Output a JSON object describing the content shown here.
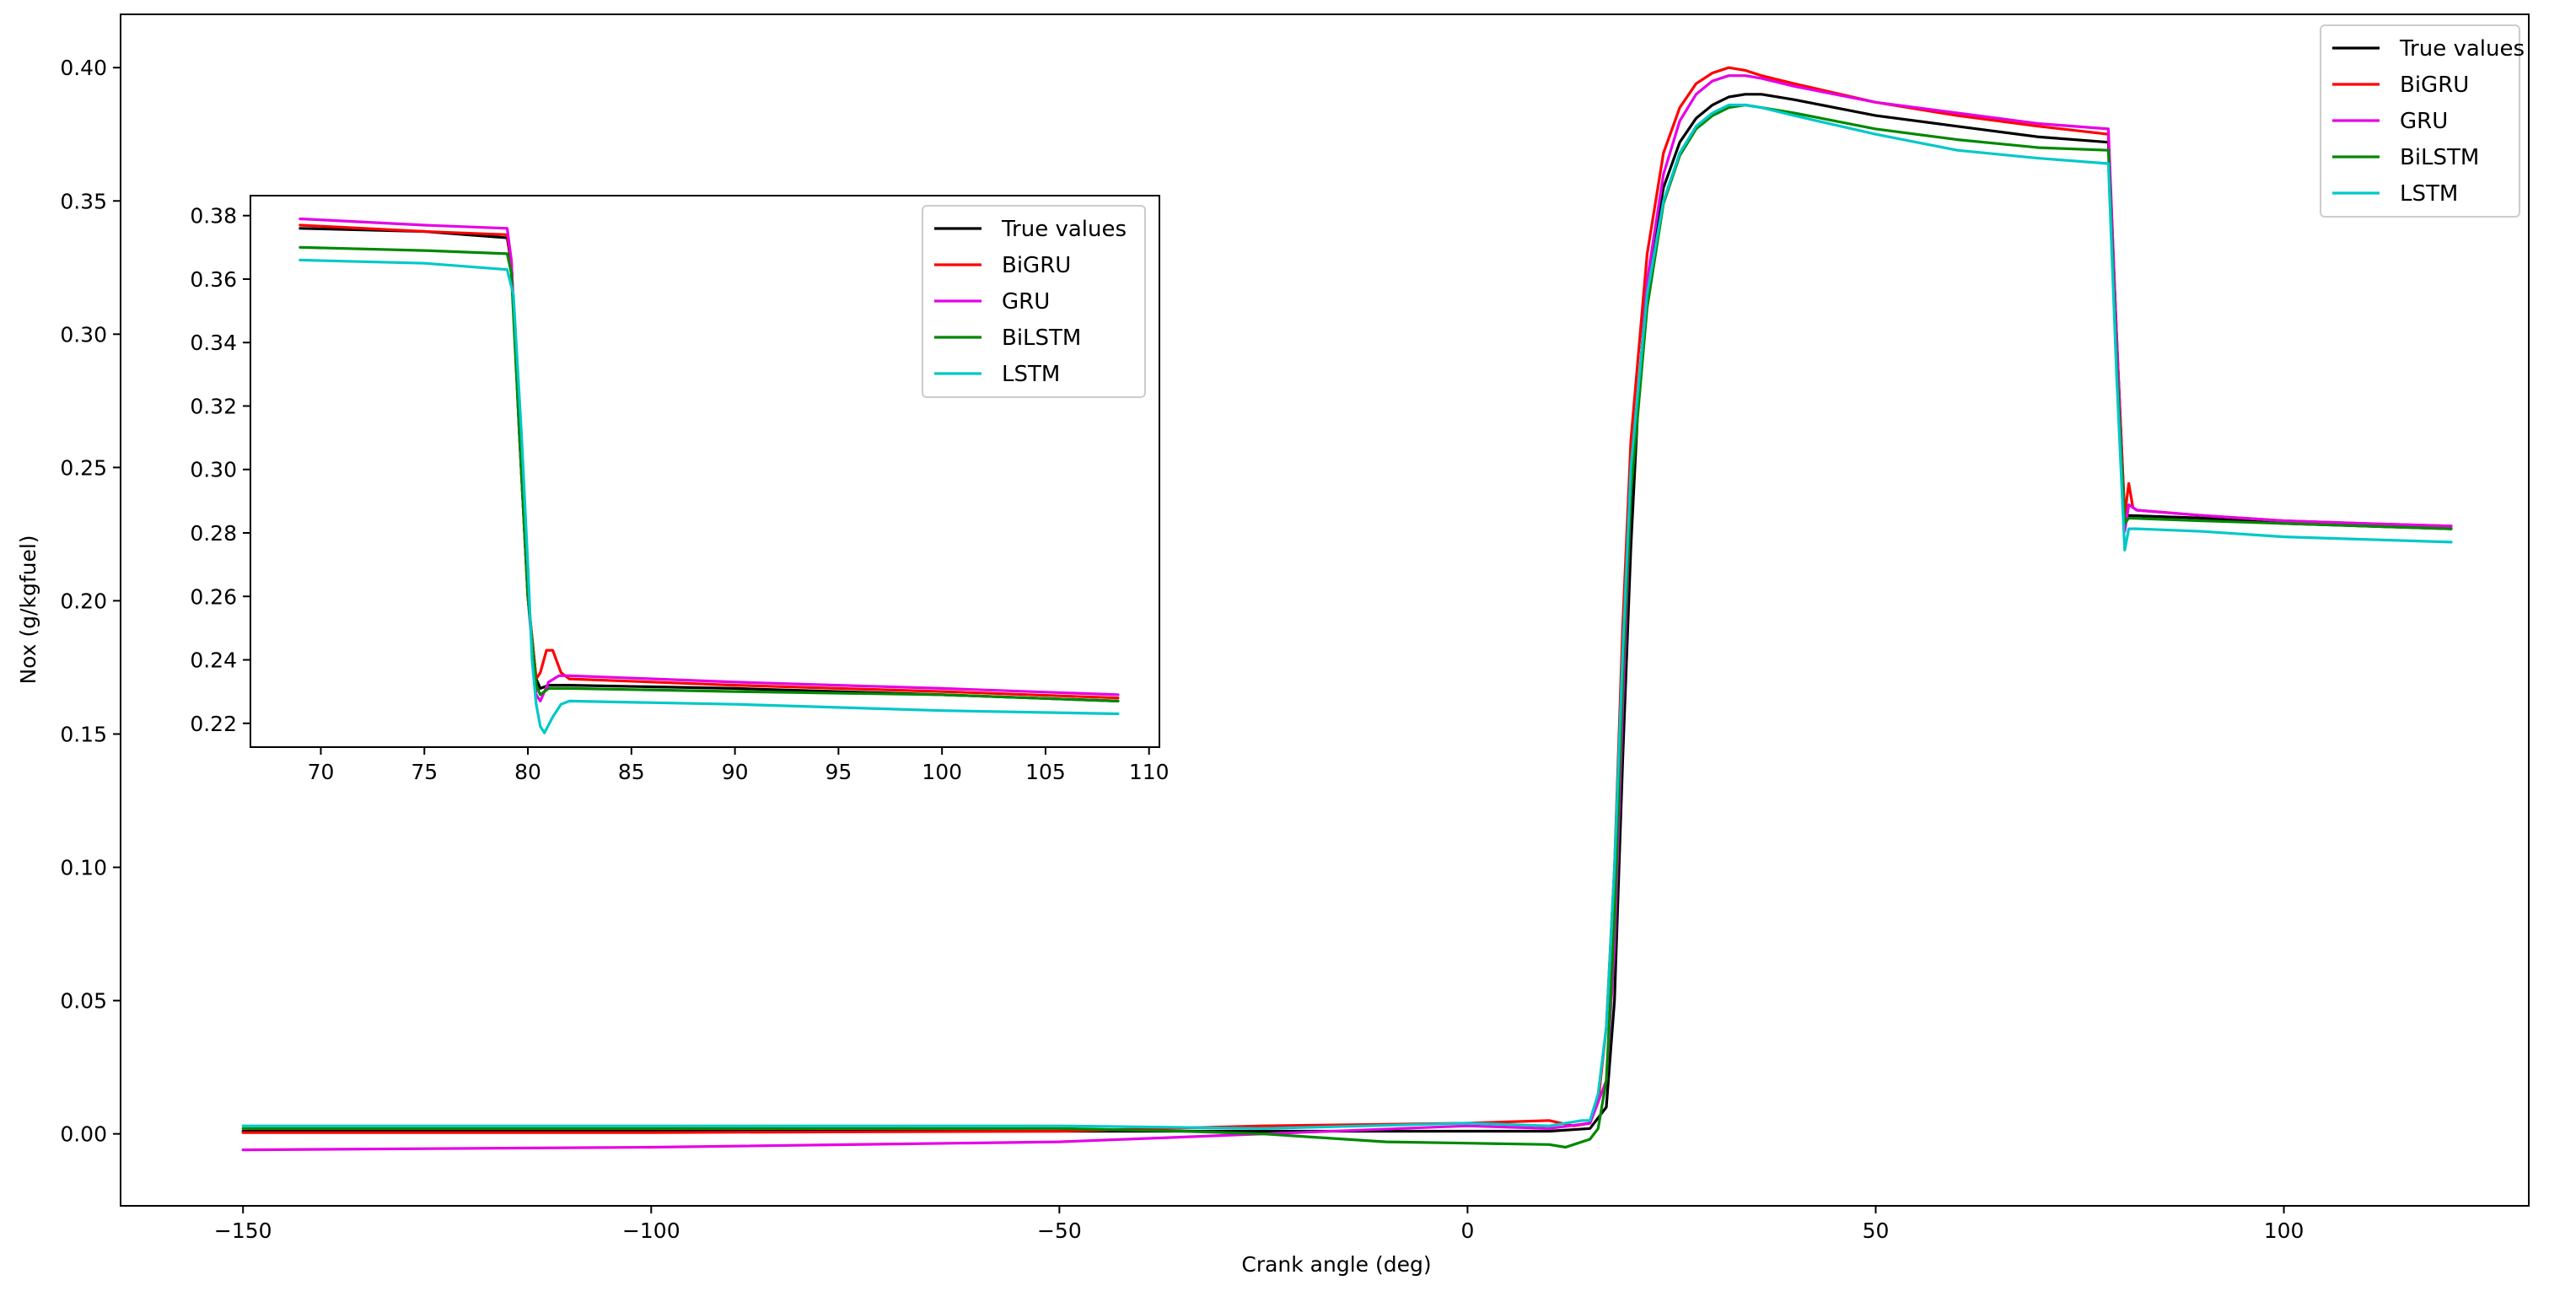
{
  "chart_data": [
    {
      "type": "line",
      "title": "",
      "xlabel": "Crank angle (deg)",
      "ylabel": "Nox (g/kgfuel)",
      "xlim": [
        -165,
        130
      ],
      "ylim": [
        -0.027,
        0.42
      ],
      "xticks": [
        -150,
        -100,
        -50,
        0,
        50,
        100
      ],
      "xtick_labels": [
        "−150",
        "−100",
        "−50",
        "0",
        "50",
        "100"
      ],
      "yticks": [
        0.0,
        0.05,
        0.1,
        0.15,
        0.2,
        0.25,
        0.3,
        0.35,
        0.4
      ],
      "ytick_labels": [
        "0.00",
        "0.05",
        "0.10",
        "0.15",
        "0.20",
        "0.25",
        "0.30",
        "0.35",
        "0.40"
      ],
      "grid": false,
      "legend_position": "top-right",
      "series": [
        {
          "name": "True values",
          "color": "#000000",
          "x": [
            -150,
            -100,
            -50,
            -25,
            0,
            10,
            15,
            17,
            18,
            19,
            20,
            21,
            22,
            24,
            26,
            28,
            30,
            32,
            34,
            36,
            40,
            50,
            60,
            70,
            78.5,
            79.5,
            80.5,
            81,
            90,
            100,
            110,
            120.5
          ],
          "y": [
            0.001,
            0.001,
            0.001,
            0.001,
            0.001,
            0.001,
            0.002,
            0.01,
            0.05,
            0.14,
            0.22,
            0.28,
            0.32,
            0.355,
            0.372,
            0.381,
            0.386,
            0.389,
            0.39,
            0.39,
            0.388,
            0.382,
            0.378,
            0.374,
            0.372,
            0.3,
            0.231,
            0.232,
            0.231,
            0.229,
            0.228,
            0.227
          ]
        },
        {
          "name": "BiGRU",
          "color": "#ff0000",
          "x": [
            -150,
            -100,
            -50,
            -25,
            0,
            10,
            13,
            15,
            16,
            17,
            18,
            19,
            20,
            22,
            24,
            26,
            28,
            30,
            32,
            34,
            36,
            40,
            50,
            60,
            70,
            78.5,
            79.5,
            80.5,
            81,
            81.5,
            82,
            90,
            100,
            110,
            120.5
          ],
          "y": [
            0.0005,
            0.0005,
            0.001,
            0.003,
            0.004,
            0.005,
            0.003,
            0.004,
            0.012,
            0.04,
            0.1,
            0.19,
            0.26,
            0.33,
            0.368,
            0.385,
            0.394,
            0.398,
            0.4,
            0.399,
            0.397,
            0.394,
            0.387,
            0.382,
            0.378,
            0.375,
            0.3,
            0.232,
            0.244,
            0.235,
            0.234,
            0.232,
            0.23,
            0.229,
            0.228
          ]
        },
        {
          "name": "GRU",
          "color": "#e600e6",
          "x": [
            -150,
            -100,
            -50,
            -25,
            0,
            10,
            15,
            17,
            18,
            19,
            20,
            22,
            24,
            26,
            28,
            30,
            32,
            34,
            36,
            40,
            50,
            60,
            70,
            78.5,
            79.5,
            80.5,
            81,
            82,
            90,
            100,
            110,
            120.5
          ],
          "y": [
            -0.006,
            -0.005,
            -0.003,
            0.0,
            0.003,
            0.002,
            0.004,
            0.02,
            0.07,
            0.16,
            0.24,
            0.32,
            0.36,
            0.38,
            0.39,
            0.395,
            0.397,
            0.397,
            0.396,
            0.393,
            0.387,
            0.383,
            0.379,
            0.377,
            0.3,
            0.226,
            0.236,
            0.234,
            0.232,
            0.23,
            0.229,
            0.228
          ]
        },
        {
          "name": "BiLSTM",
          "color": "#008800",
          "x": [
            -150,
            -100,
            -50,
            -35,
            -25,
            -10,
            0,
            10,
            12,
            13,
            15,
            16,
            17,
            18,
            19,
            20,
            22,
            24,
            26,
            28,
            30,
            32,
            34,
            36,
            40,
            50,
            60,
            70,
            78.5,
            79.5,
            80.5,
            81,
            90,
            100,
            110,
            120.5
          ],
          "y": [
            0.002,
            0.002,
            0.002,
            0.001,
            0.0,
            -0.003,
            -0.0035,
            -0.004,
            -0.005,
            -0.004,
            -0.002,
            0.002,
            0.02,
            0.08,
            0.17,
            0.24,
            0.31,
            0.349,
            0.367,
            0.377,
            0.382,
            0.385,
            0.386,
            0.385,
            0.383,
            0.377,
            0.373,
            0.37,
            0.369,
            0.29,
            0.229,
            0.231,
            0.23,
            0.229,
            0.228,
            0.227
          ]
        },
        {
          "name": "LSTM",
          "color": "#00c8c8",
          "x": [
            -150,
            -100,
            -50,
            -25,
            0,
            10,
            14,
            15,
            16,
            17,
            18,
            19,
            20,
            22,
            24,
            26,
            28,
            30,
            32,
            34,
            36,
            40,
            50,
            60,
            70,
            78.5,
            79.5,
            80.5,
            81,
            82,
            90,
            100,
            110,
            120.5
          ],
          "y": [
            0.003,
            0.003,
            0.003,
            0.002,
            0.004,
            0.003,
            0.005,
            0.005,
            0.015,
            0.04,
            0.1,
            0.18,
            0.25,
            0.315,
            0.35,
            0.368,
            0.378,
            0.383,
            0.386,
            0.386,
            0.385,
            0.382,
            0.375,
            0.369,
            0.366,
            0.364,
            0.285,
            0.219,
            0.227,
            0.227,
            0.226,
            0.224,
            0.223,
            0.222
          ]
        }
      ]
    },
    {
      "type": "line",
      "title": "",
      "xlabel": "",
      "ylabel": "",
      "xlim": [
        66.6,
        110.5
      ],
      "ylim": [
        0.2125,
        0.3863
      ],
      "xticks": [
        70,
        75,
        80,
        85,
        90,
        95,
        100,
        105,
        110
      ],
      "xtick_labels": [
        "70",
        "75",
        "80",
        "85",
        "90",
        "95",
        "100",
        "105",
        "110"
      ],
      "yticks": [
        0.22,
        0.24,
        0.26,
        0.28,
        0.3,
        0.32,
        0.34,
        0.36,
        0.38
      ],
      "ytick_labels": [
        "0.22",
        "0.24",
        "0.26",
        "0.28",
        "0.30",
        "0.32",
        "0.34",
        "0.36",
        "0.38"
      ],
      "grid": false,
      "legend_position": "top-right",
      "series": [
        {
          "name": "True values",
          "color": "#000000",
          "x": [
            69,
            75,
            79,
            79.2,
            79.6,
            80,
            80.4,
            80.6,
            81,
            82,
            90,
            100,
            108.5
          ],
          "y": [
            0.376,
            0.375,
            0.373,
            0.365,
            0.31,
            0.26,
            0.234,
            0.231,
            0.232,
            0.232,
            0.231,
            0.229,
            0.227
          ]
        },
        {
          "name": "BiGRU",
          "color": "#ff0000",
          "x": [
            69,
            75,
            79,
            79.2,
            79.6,
            80,
            80.4,
            80.6,
            80.9,
            81.2,
            81.6,
            82,
            90,
            100,
            108.5
          ],
          "y": [
            0.377,
            0.375,
            0.374,
            0.366,
            0.31,
            0.26,
            0.234,
            0.236,
            0.243,
            0.243,
            0.236,
            0.234,
            0.232,
            0.23,
            0.228
          ]
        },
        {
          "name": "GRU",
          "color": "#e600e6",
          "x": [
            69,
            75,
            79,
            79.2,
            79.6,
            80,
            80.4,
            80.6,
            81,
            81.5,
            82,
            90,
            100,
            108.5
          ],
          "y": [
            0.379,
            0.377,
            0.376,
            0.366,
            0.31,
            0.26,
            0.229,
            0.227,
            0.233,
            0.235,
            0.235,
            0.233,
            0.231,
            0.229
          ]
        },
        {
          "name": "BiLSTM",
          "color": "#008800",
          "x": [
            69,
            75,
            79,
            79.2,
            79.6,
            80,
            80.4,
            80.6,
            81,
            82,
            90,
            100,
            108.5
          ],
          "y": [
            0.37,
            0.369,
            0.368,
            0.362,
            0.31,
            0.26,
            0.232,
            0.229,
            0.231,
            0.231,
            0.23,
            0.229,
            0.227
          ]
        },
        {
          "name": "LSTM",
          "color": "#00c8c8",
          "x": [
            69,
            75,
            79,
            79.3,
            79.7,
            80,
            80.2,
            80.4,
            80.6,
            80.8,
            81.2,
            81.6,
            82,
            90,
            100,
            108.5
          ],
          "y": [
            0.366,
            0.365,
            0.363,
            0.355,
            0.31,
            0.27,
            0.24,
            0.226,
            0.219,
            0.217,
            0.222,
            0.226,
            0.227,
            0.226,
            0.224,
            0.223
          ]
        }
      ]
    }
  ]
}
